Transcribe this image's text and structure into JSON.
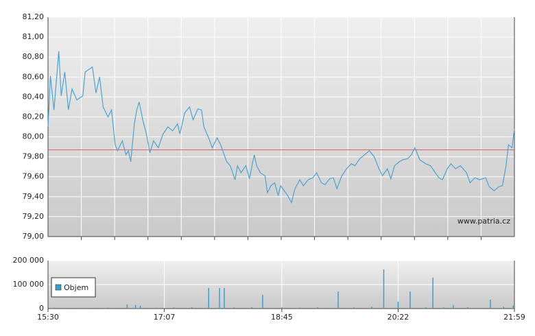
{
  "chart_data": [
    {
      "type": "line",
      "color": "#4aa3d3",
      "annotation": "www.patria.cz",
      "reference_value": 79.87,
      "reference_color": "#e06060",
      "xlim": [
        "15:30",
        "21:59"
      ],
      "ylim": [
        79.0,
        81.2
      ],
      "yticks": [
        {
          "value": 79.0,
          "label": "79,00"
        },
        {
          "value": 79.2,
          "label": "79,20"
        },
        {
          "value": 79.4,
          "label": "79,40"
        },
        {
          "value": 79.6,
          "label": "79,60"
        },
        {
          "value": 79.8,
          "label": "79,80"
        },
        {
          "value": 80.0,
          "label": "80,00"
        },
        {
          "value": 80.2,
          "label": "80,20"
        },
        {
          "value": 80.4,
          "label": "80,40"
        },
        {
          "value": 80.6,
          "label": "80,60"
        },
        {
          "value": 80.8,
          "label": "80,80"
        },
        {
          "value": 81.0,
          "label": "81,00"
        },
        {
          "value": 81.2,
          "label": "81,20"
        }
      ],
      "grid": true,
      "x": [
        "15:30",
        "15:32",
        "15:35",
        "15:39",
        "15:41",
        "15:44",
        "15:47",
        "15:50",
        "15:54",
        "15:59",
        "16:01",
        "16:07",
        "16:10",
        "16:13",
        "16:16",
        "16:20",
        "16:23",
        "16:26",
        "16:28",
        "16:32",
        "16:35",
        "16:37",
        "16:39",
        "16:42",
        "16:44",
        "16:46",
        "16:49",
        "16:52",
        "16:55",
        "16:58",
        "17:02",
        "17:06",
        "17:10",
        "17:14",
        "17:18",
        "17:20",
        "17:24",
        "17:28",
        "17:31",
        "17:35",
        "17:38",
        "17:40",
        "17:44",
        "17:47",
        "17:51",
        "17:54",
        "17:59",
        "18:02",
        "18:06",
        "18:08",
        "18:11",
        "18:15",
        "18:18",
        "18:22",
        "18:24",
        "18:27",
        "18:31",
        "18:33",
        "18:36",
        "18:39",
        "18:42",
        "18:44",
        "18:47",
        "18:50",
        "18:53",
        "18:56",
        "19:00",
        "19:03",
        "19:07",
        "19:11",
        "19:14",
        "19:18",
        "19:21",
        "19:25",
        "19:28",
        "19:31",
        "19:35",
        "19:39",
        "19:43",
        "19:46",
        "19:50",
        "19:54",
        "19:58",
        "20:02",
        "20:06",
        "20:09",
        "20:13",
        "20:16",
        "20:19",
        "20:23",
        "20:26",
        "20:30",
        "20:33",
        "20:36",
        "20:40",
        "20:45",
        "20:49",
        "20:53",
        "20:56",
        "20:59",
        "21:03",
        "21:06",
        "21:10",
        "21:14",
        "21:19",
        "21:22",
        "21:26",
        "21:30",
        "21:35",
        "21:38",
        "21:42",
        "21:46",
        "21:49",
        "21:52",
        "21:54",
        "21:57",
        "21:59"
      ],
      "values": [
        80.1,
        80.61,
        80.27,
        80.86,
        80.41,
        80.65,
        80.27,
        80.48,
        80.37,
        80.41,
        80.65,
        80.7,
        80.44,
        80.6,
        80.3,
        80.2,
        80.27,
        79.92,
        79.86,
        79.96,
        79.82,
        79.86,
        79.75,
        80.13,
        80.27,
        80.35,
        80.17,
        80.03,
        79.84,
        79.96,
        79.89,
        80.03,
        80.1,
        80.06,
        80.13,
        80.03,
        80.24,
        80.3,
        80.17,
        80.28,
        80.27,
        80.1,
        79.99,
        79.89,
        79.99,
        79.92,
        79.75,
        79.71,
        79.57,
        79.71,
        79.64,
        79.71,
        79.58,
        79.82,
        79.71,
        79.64,
        79.61,
        79.44,
        79.51,
        79.54,
        79.41,
        79.51,
        79.46,
        79.41,
        79.34,
        79.48,
        79.57,
        79.51,
        79.57,
        79.59,
        79.64,
        79.54,
        79.52,
        79.58,
        79.59,
        79.48,
        79.61,
        79.68,
        79.73,
        79.71,
        79.78,
        79.82,
        79.86,
        79.8,
        79.68,
        79.61,
        79.68,
        79.58,
        79.71,
        79.75,
        79.77,
        79.78,
        79.82,
        79.89,
        79.77,
        79.73,
        79.71,
        79.64,
        79.59,
        79.57,
        79.68,
        79.73,
        79.68,
        79.71,
        79.64,
        79.54,
        79.59,
        79.57,
        79.59,
        79.5,
        79.46,
        79.5,
        79.51,
        79.71,
        79.92,
        79.89,
        80.08
      ]
    },
    {
      "type": "bar",
      "legend": "top-left",
      "xlim": [
        "15:30",
        "21:59"
      ],
      "xticks": [
        "15:30",
        "17:07",
        "18:45",
        "20:22",
        "21:59"
      ],
      "ylim": [
        0,
        200000
      ],
      "yticks": [
        0,
        {
          "value": 100000,
          "label": "100 000"
        },
        {
          "value": 200000,
          "label": "200 000"
        }
      ],
      "grid": true,
      "series": [
        {
          "name": "Objem",
          "color": "#3a9fd0",
          "x": [
            "15:35",
            "15:50",
            "16:05",
            "16:20",
            "16:36",
            "16:43",
            "16:47",
            "17:00",
            "17:15",
            "17:30",
            "17:44",
            "17:53",
            "17:57",
            "18:05",
            "18:20",
            "18:29",
            "18:45",
            "19:00",
            "19:15",
            "19:32",
            "19:45",
            "20:00",
            "20:10",
            "20:22",
            "20:32",
            "20:45",
            "20:51",
            "21:00",
            "21:08",
            "21:20",
            "21:39",
            "21:50",
            "21:58"
          ],
          "values": [
            4000,
            3000,
            3000,
            4000,
            17000,
            15000,
            12000,
            4000,
            5000,
            6000,
            86000,
            86000,
            86000,
            5000,
            6000,
            57000,
            5000,
            4000,
            6000,
            71000,
            5000,
            8000,
            163000,
            29000,
            71000,
            6000,
            129000,
            5000,
            14000,
            6000,
            37000,
            8000,
            12000
          ]
        }
      ]
    }
  ]
}
